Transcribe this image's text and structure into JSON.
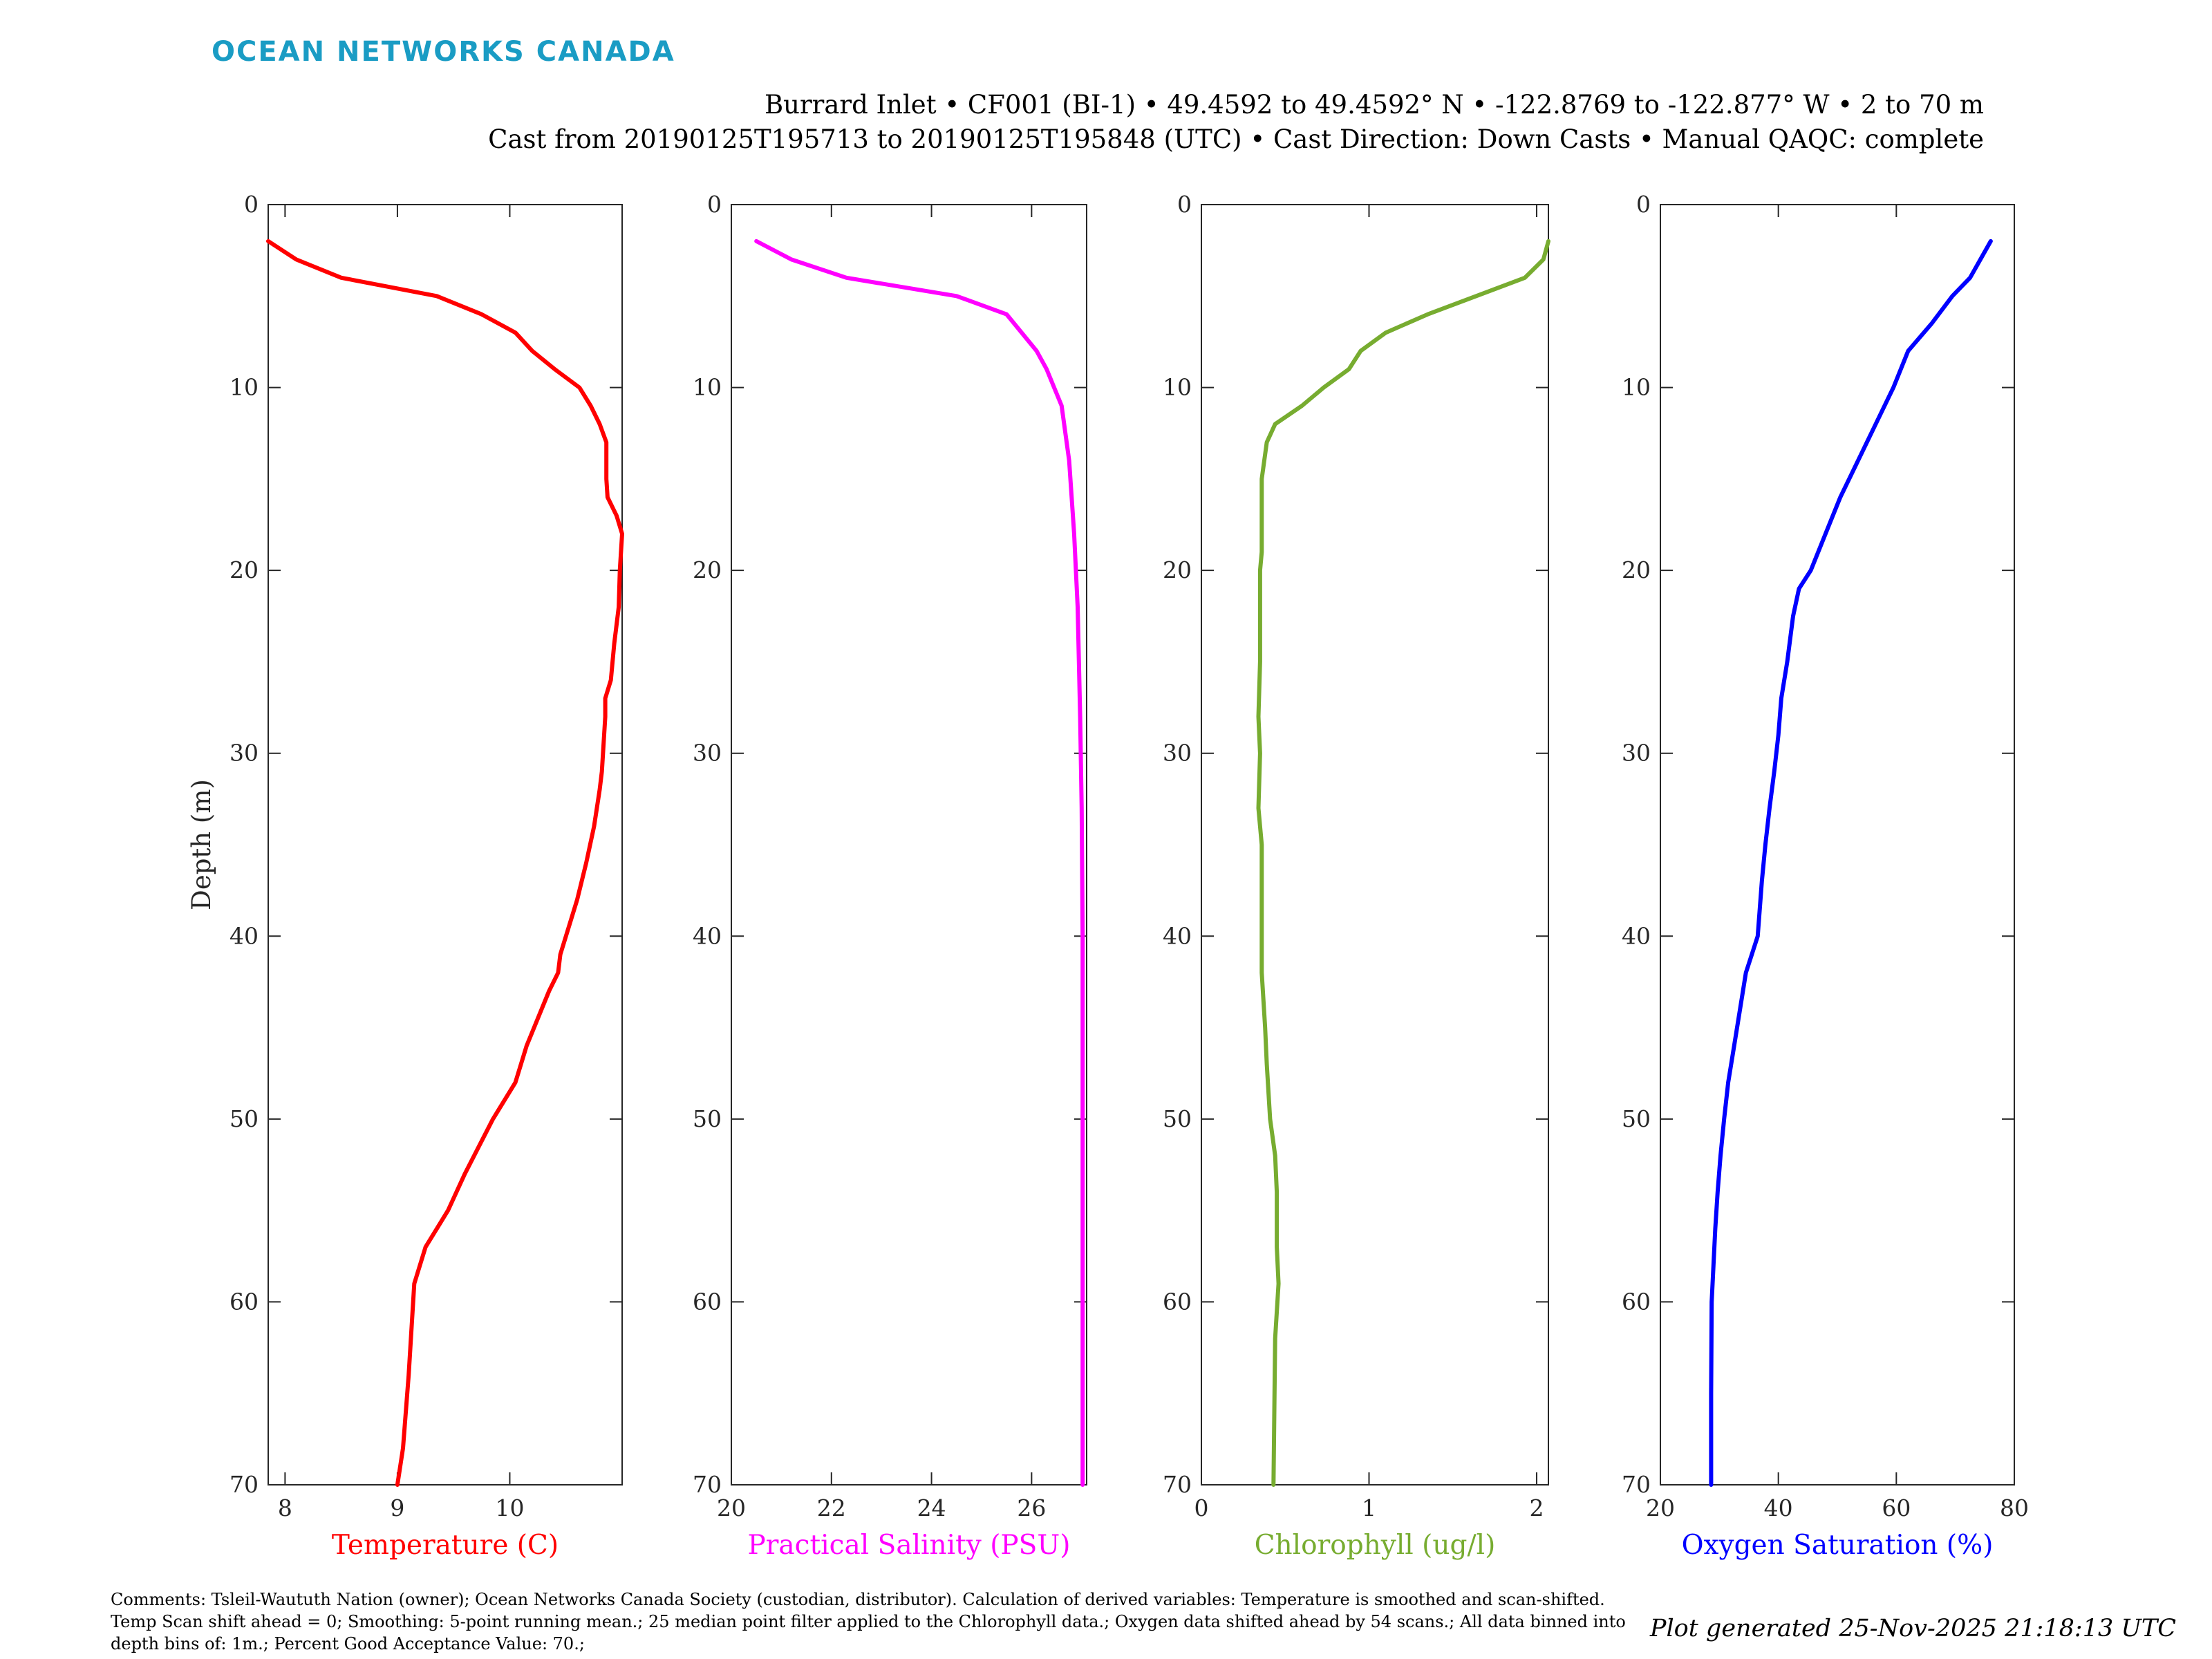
{
  "header": {
    "brand": "OCEAN NETWORKS CANADA",
    "title_line1": "Burrard Inlet • CF001 (BI-1) • 49.4592 to 49.4592° N • -122.8769 to -122.877° W • 2 to 70 m",
    "title_line2": "Cast from 20190125T195713 to 20190125T195848 (UTC) • Cast Direction: Down Casts • Manual QAQC: complete"
  },
  "footer": {
    "comments": "Comments: Tsleil-Waututh Nation (owner); Ocean Networks Canada Society (custodian, distributor). Calculation of derived variables: Temperature is smoothed and scan-shifted. Temp Scan shift ahead = 0; Smoothing: 5-point running mean.; 25 median point filter applied to the Chlorophyll data.; Oxygen data shifted ahead by 54 scans.; All data binned into depth bins of: 1m.; Percent Good Acceptance Value: 70.;",
    "generated": "Plot generated 25-Nov-2025 21:18:13 UTC"
  },
  "chart_data": [
    {
      "type": "line",
      "xlabel": "Temperature (C)",
      "ylabel": "Depth (m)",
      "color": "#ff0000",
      "xlim": [
        7.85,
        11.0
      ],
      "ylim": [
        70,
        0
      ],
      "xticks": [
        8,
        9,
        10
      ],
      "yticks": [
        0,
        10,
        20,
        30,
        40,
        50,
        60,
        70
      ],
      "grid": false,
      "series": [
        {
          "x": [
            7.85,
            8.1,
            8.5,
            9.35,
            9.75,
            10.05,
            10.2,
            10.4,
            10.62,
            10.72,
            10.8,
            10.86,
            10.86,
            10.87,
            10.95,
            11.0,
            10.98,
            10.97,
            10.93,
            10.9,
            10.85,
            10.85,
            10.82,
            10.8,
            10.75,
            10.68,
            10.6,
            10.55,
            10.45,
            10.43,
            10.35,
            10.15,
            10.05,
            9.85,
            9.6,
            9.45,
            9.25,
            9.15,
            9.1,
            9.05,
            9.0
          ],
          "y": [
            2,
            3,
            4,
            5,
            6,
            7,
            8,
            9,
            10,
            11,
            12,
            13,
            15,
            16,
            17,
            18,
            20,
            22,
            24,
            26,
            27,
            28,
            31,
            32,
            34,
            36,
            38,
            39,
            41,
            42,
            43,
            46,
            48,
            50,
            53,
            55,
            57,
            59,
            64,
            68,
            70
          ]
        }
      ]
    },
    {
      "type": "line",
      "xlabel": "Practical Salinity (PSU)",
      "ylabel": "Depth (m)",
      "color": "#ff00ff",
      "xlim": [
        20,
        27.1
      ],
      "ylim": [
        70,
        0
      ],
      "xticks": [
        20,
        22,
        24,
        26
      ],
      "yticks": [
        0,
        10,
        20,
        30,
        40,
        50,
        60,
        70
      ],
      "grid": false,
      "series": [
        {
          "x": [
            20.5,
            21.2,
            22.3,
            24.5,
            25.5,
            25.8,
            26.1,
            26.3,
            26.6,
            26.75,
            26.85,
            26.92,
            26.97,
            27.0,
            27.02,
            27.02,
            27.02
          ],
          "y": [
            2,
            3,
            4,
            5,
            6,
            7,
            8,
            9,
            11,
            14,
            18,
            22,
            28,
            33,
            40,
            55,
            70
          ]
        }
      ]
    },
    {
      "type": "line",
      "xlabel": "Chlorophyll (ug/l)",
      "ylabel": "Depth (m)",
      "color": "#77ac30",
      "xlim": [
        0,
        2.07
      ],
      "ylim": [
        70,
        0
      ],
      "xticks": [
        0,
        1,
        2
      ],
      "yticks": [
        0,
        10,
        20,
        30,
        40,
        50,
        60,
        70
      ],
      "grid": false,
      "series": [
        {
          "x": [
            2.07,
            2.04,
            1.93,
            1.35,
            1.1,
            0.95,
            0.88,
            0.73,
            0.6,
            0.44,
            0.39,
            0.36,
            0.36,
            0.35,
            0.35,
            0.34,
            0.35,
            0.34,
            0.35,
            0.36,
            0.36,
            0.38,
            0.39,
            0.41,
            0.44,
            0.45,
            0.45,
            0.46,
            0.44,
            0.43
          ],
          "y": [
            2,
            3,
            4,
            6,
            7,
            8,
            9,
            10,
            11,
            12,
            13,
            15,
            19,
            20,
            25,
            28,
            30,
            33,
            34,
            35,
            42,
            45,
            47,
            50,
            52,
            54,
            57,
            59,
            62,
            70
          ]
        }
      ]
    },
    {
      "type": "line",
      "xlabel": "Oxygen Saturation (%)",
      "ylabel": "Depth (m)",
      "color": "#0000ff",
      "xlim": [
        20,
        80
      ],
      "ylim": [
        70,
        0
      ],
      "xticks": [
        20,
        40,
        60,
        80
      ],
      "yticks": [
        0,
        10,
        20,
        30,
        40,
        50,
        60,
        70
      ],
      "grid": false,
      "series": [
        {
          "x": [
            76,
            72.5,
            69.5,
            66,
            62,
            59.5,
            56.5,
            53.5,
            50.5,
            48,
            45.5,
            43.5,
            42.5,
            41.5,
            40.5,
            40,
            39.3,
            38.5,
            37.8,
            37.2,
            36.5,
            35.5,
            34.5,
            33.5,
            32.5,
            31.5,
            30.8,
            30.2,
            29.7,
            29.3,
            29.0,
            28.7,
            28.6,
            28.6
          ],
          "y": [
            2,
            4,
            5,
            6.5,
            8,
            10,
            12,
            14,
            16,
            18,
            20,
            21,
            22.5,
            25,
            27,
            29,
            31,
            33,
            35,
            37,
            40,
            41,
            42,
            44,
            46,
            48,
            50,
            52,
            54,
            56,
            58,
            60,
            65,
            70
          ]
        }
      ]
    }
  ]
}
